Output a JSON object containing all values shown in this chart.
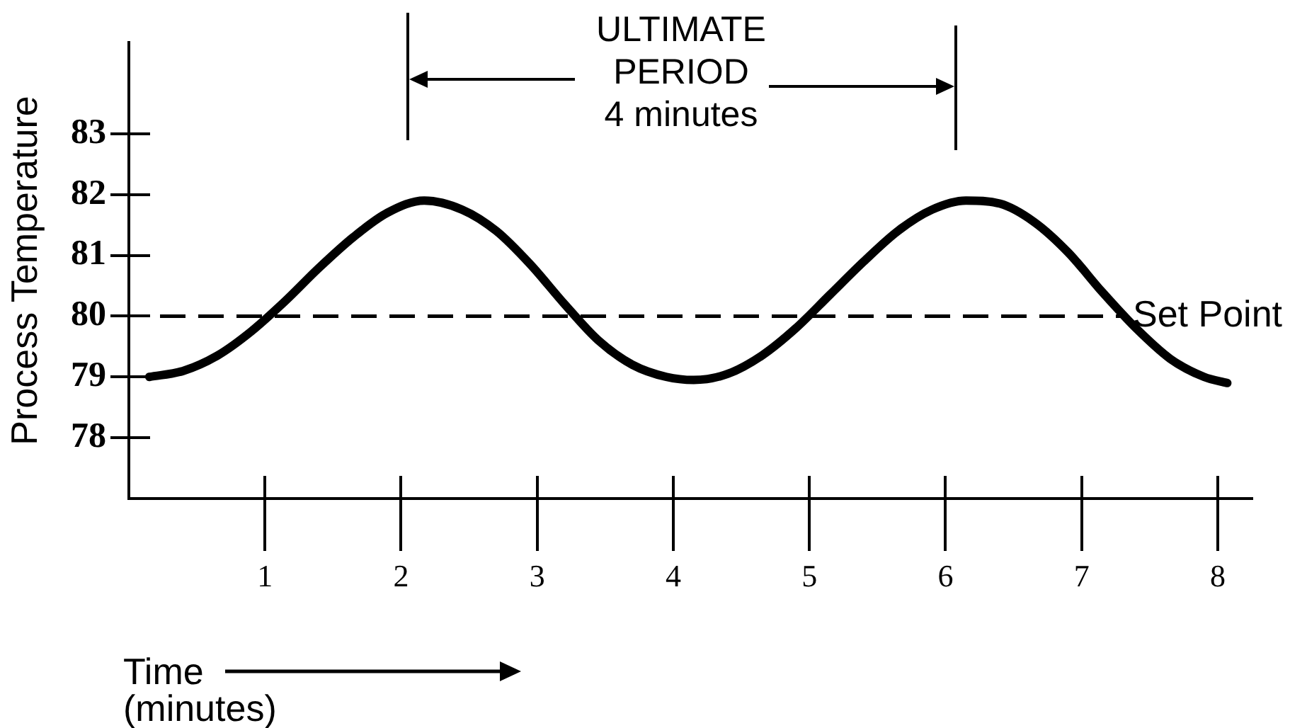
{
  "chart_data": {
    "type": "line",
    "xlabel": "Time\n(minutes)",
    "ylabel": "Process Temperature",
    "annotations": [
      "ULTIMATE\nPERIOD\n4 minutes"
    ],
    "x": [
      0.15,
      0.4,
      0.65,
      0.9,
      1.15,
      1.4,
      1.65,
      1.9,
      2.17,
      2.45,
      2.7,
      2.95,
      3.2,
      3.45,
      3.7,
      3.95,
      4.15,
      4.4,
      4.65,
      4.9,
      5.15,
      5.4,
      5.65,
      5.9,
      6.15,
      6.4,
      6.65,
      6.9,
      7.15,
      7.4,
      7.65,
      7.9,
      8.07
    ],
    "series": [
      {
        "color": "#000000",
        "values": [
          79.0,
          79.1,
          79.35,
          79.75,
          80.25,
          80.8,
          81.3,
          81.7,
          81.9,
          81.75,
          81.4,
          80.85,
          80.2,
          79.6,
          79.2,
          79.0,
          78.95,
          79.05,
          79.35,
          79.8,
          80.35,
          80.9,
          81.4,
          81.75,
          81.9,
          81.85,
          81.55,
          81.05,
          80.4,
          79.8,
          79.3,
          79.0,
          78.9
        ]
      }
    ],
    "xlim": [
      0,
      8.25
    ],
    "xticks": [
      1,
      2,
      3,
      4,
      5,
      6,
      7,
      8
    ],
    "ylim": [
      77,
      84.5
    ],
    "yticks": [
      78,
      79,
      80,
      81,
      82,
      83
    ],
    "ref_lines": [
      {
        "axis": "y",
        "value": 80,
        "label": "Set Point",
        "line_style": "dashed",
        "color": "#000000"
      }
    ],
    "grid": false,
    "legend": false,
    "marker": "none",
    "line_style": "solid"
  }
}
